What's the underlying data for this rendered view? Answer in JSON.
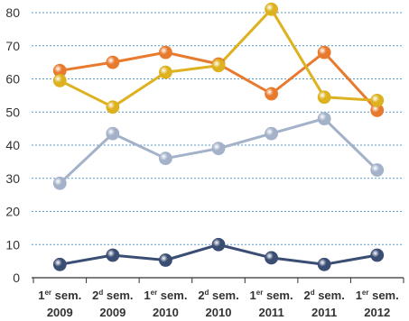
{
  "chart_data": {
    "type": "line",
    "categories": [
      {
        "line1": "1er sem.",
        "line1_base": "1",
        "line1_sup": "er",
        "line1_rest": " sem.",
        "line2": "2009"
      },
      {
        "line1": "2d sem.",
        "line1_base": "2",
        "line1_sup": "d",
        "line1_rest": " sem.",
        "line2": "2009"
      },
      {
        "line1": "1er sem.",
        "line1_base": "1",
        "line1_sup": "er",
        "line1_rest": " sem.",
        "line2": "2010"
      },
      {
        "line1": "2d sem.",
        "line1_base": "2",
        "line1_sup": "d",
        "line1_rest": " sem.",
        "line2": "2010"
      },
      {
        "line1": "1er sem.",
        "line1_base": "1",
        "line1_sup": "er",
        "line1_rest": " sem.",
        "line2": "2011"
      },
      {
        "line1": "2d sem.",
        "line1_base": "2",
        "line1_sup": "d",
        "line1_rest": " sem.",
        "line2": "2011"
      },
      {
        "line1": "1er sem.",
        "line1_base": "1",
        "line1_sup": "er",
        "line1_rest": " sem.",
        "line2": "2012"
      }
    ],
    "ylim": [
      0,
      80
    ],
    "yticks": [
      0,
      10,
      20,
      30,
      40,
      50,
      60,
      70,
      80
    ],
    "grid": true,
    "series": [
      {
        "color": "#e87a2e",
        "values": [
          62.5,
          65,
          68,
          64.5,
          55.5,
          68,
          50.5
        ]
      },
      {
        "color": "#ddb11f",
        "values": [
          59.5,
          51.5,
          62,
          64,
          81,
          54.5,
          53.5
        ]
      },
      {
        "color": "#a3b1c9",
        "values": [
          28.5,
          43.5,
          36,
          39,
          43.5,
          48,
          32.5
        ]
      },
      {
        "color": "#3a4d73",
        "values": [
          4,
          6.8,
          5.3,
          10,
          6,
          4,
          6.8
        ]
      }
    ]
  }
}
